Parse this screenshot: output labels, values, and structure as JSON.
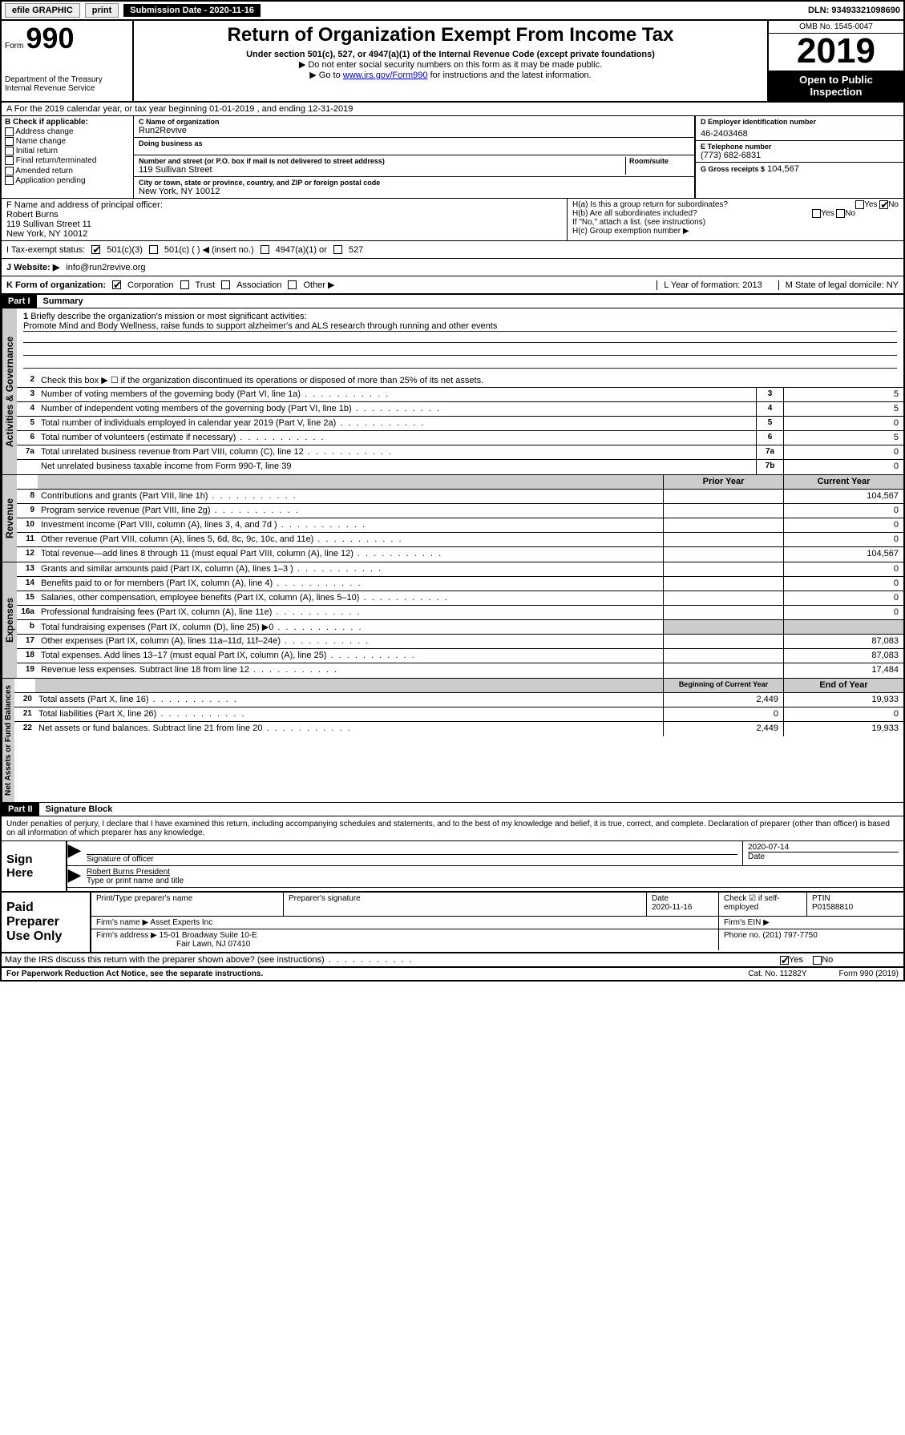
{
  "topbar": {
    "efile": "efile GRAPHIC",
    "print": "print",
    "submission_label": "Submission Date - 2020-11-16",
    "dln": "DLN: 93493321098690"
  },
  "header": {
    "form_prefix": "Form",
    "form_number": "990",
    "title": "Return of Organization Exempt From Income Tax",
    "subtitle": "Under section 501(c), 527, or 4947(a)(1) of the Internal Revenue Code (except private foundations)",
    "note1": "▶ Do not enter social security numbers on this form as it may be made public.",
    "note2_prefix": "▶ Go to ",
    "note2_link": "www.irs.gov/Form990",
    "note2_suffix": " for instructions and the latest information.",
    "dept": "Department of the Treasury",
    "irs": "Internal Revenue Service",
    "omb": "OMB No. 1545-0047",
    "year": "2019",
    "open_public": "Open to Public Inspection"
  },
  "rowA": "A For the 2019 calendar year, or tax year beginning 01-01-2019   , and ending 12-31-2019",
  "colB": {
    "heading": "B Check if applicable:",
    "opts": [
      "Address change",
      "Name change",
      "Initial return",
      "Final return/terminated",
      "Amended return",
      "Application pending"
    ]
  },
  "colC": {
    "name_label": "C Name of organization",
    "name": "Run2Revive",
    "dba_label": "Doing business as",
    "dba": "",
    "street_label": "Number and street (or P.O. box if mail is not delivered to street address)",
    "room_label": "Room/suite",
    "street": "119 Sullivan Street",
    "city_label": "City or town, state or province, country, and ZIP or foreign postal code",
    "city": "New York, NY  10012"
  },
  "colD": {
    "label": "D Employer identification number",
    "value": "46-2403468"
  },
  "colE": {
    "label": "E Telephone number",
    "value": "(773) 682-6831"
  },
  "colG": {
    "label": "G Gross receipts $",
    "value": "104,567"
  },
  "colF": {
    "label": "F  Name and address of principal officer:",
    "name": "Robert Burns",
    "line1": "119 Sullivan Street 11",
    "line2": "New York, NY  10012"
  },
  "colH": {
    "ha": "H(a)  Is this a group return for subordinates?",
    "hb": "H(b)  Are all subordinates included?",
    "hb_note": "If \"No,\" attach a list. (see instructions)",
    "hc": "H(c)  Group exemption number ▶",
    "yes": "Yes",
    "no": "No"
  },
  "status": {
    "label": "I   Tax-exempt status:",
    "o1": "501(c)(3)",
    "o2": "501(c) (  ) ◀ (insert no.)",
    "o3": "4947(a)(1) or",
    "o4": "527"
  },
  "website": {
    "label": "J   Website: ▶",
    "value": "info@run2revive.org"
  },
  "rowK": {
    "label": "K Form of organization:",
    "opts": [
      "Corporation",
      "Trust",
      "Association",
      "Other ▶"
    ],
    "L": "L Year of formation: 2013",
    "M": "M State of legal domicile: NY"
  },
  "part1": {
    "header": "Part I",
    "title": "Summary"
  },
  "summary": {
    "q1": "Briefly describe the organization's mission or most significant activities:",
    "mission": "Promote Mind and Body Wellness, raise funds to support alzheimer's and ALS research through running and other events",
    "q2": "Check this box ▶ ☐  if the organization discontinued its operations or disposed of more than 25% of its net assets.",
    "lines": [
      {
        "n": "3",
        "t": "Number of voting members of the governing body (Part VI, line 1a)",
        "a": "3",
        "v": "5"
      },
      {
        "n": "4",
        "t": "Number of independent voting members of the governing body (Part VI, line 1b)",
        "a": "4",
        "v": "5"
      },
      {
        "n": "5",
        "t": "Total number of individuals employed in calendar year 2019 (Part V, line 2a)",
        "a": "5",
        "v": "0"
      },
      {
        "n": "6",
        "t": "Total number of volunteers (estimate if necessary)",
        "a": "6",
        "v": "5"
      },
      {
        "n": "7a",
        "t": "Total unrelated business revenue from Part VIII, column (C), line 12",
        "a": "7a",
        "v": "0"
      },
      {
        "n": "",
        "t": "Net unrelated business taxable income from Form 990-T, line 39",
        "a": "7b",
        "v": "0"
      }
    ],
    "col_prior": "Prior Year",
    "col_current": "Current Year",
    "revenue": [
      {
        "n": "8",
        "t": "Contributions and grants (Part VIII, line 1h)",
        "p": "",
        "c": "104,567"
      },
      {
        "n": "9",
        "t": "Program service revenue (Part VIII, line 2g)",
        "p": "",
        "c": "0"
      },
      {
        "n": "10",
        "t": "Investment income (Part VIII, column (A), lines 3, 4, and 7d )",
        "p": "",
        "c": "0"
      },
      {
        "n": "11",
        "t": "Other revenue (Part VIII, column (A), lines 5, 6d, 8c, 9c, 10c, and 11e)",
        "p": "",
        "c": "0"
      },
      {
        "n": "12",
        "t": "Total revenue—add lines 8 through 11 (must equal Part VIII, column (A), line 12)",
        "p": "",
        "c": "104,567"
      }
    ],
    "expenses": [
      {
        "n": "13",
        "t": "Grants and similar amounts paid (Part IX, column (A), lines 1–3 )",
        "p": "",
        "c": "0"
      },
      {
        "n": "14",
        "t": "Benefits paid to or for members (Part IX, column (A), line 4)",
        "p": "",
        "c": "0"
      },
      {
        "n": "15",
        "t": "Salaries, other compensation, employee benefits (Part IX, column (A), lines 5–10)",
        "p": "",
        "c": "0"
      },
      {
        "n": "16a",
        "t": "Professional fundraising fees (Part IX, column (A), line 11e)",
        "p": "",
        "c": "0"
      },
      {
        "n": "b",
        "t": "Total fundraising expenses (Part IX, column (D), line 25) ▶0",
        "grey": true
      },
      {
        "n": "17",
        "t": "Other expenses (Part IX, column (A), lines 11a–11d, 11f–24e)",
        "p": "",
        "c": "87,083"
      },
      {
        "n": "18",
        "t": "Total expenses. Add lines 13–17 (must equal Part IX, column (A), line 25)",
        "p": "",
        "c": "87,083"
      },
      {
        "n": "19",
        "t": "Revenue less expenses. Subtract line 18 from line 12",
        "p": "",
        "c": "17,484"
      }
    ],
    "col_begin": "Beginning of Current Year",
    "col_end": "End of Year",
    "netassets": [
      {
        "n": "20",
        "t": "Total assets (Part X, line 16)",
        "p": "2,449",
        "c": "19,933"
      },
      {
        "n": "21",
        "t": "Total liabilities (Part X, line 26)",
        "p": "0",
        "c": "0"
      },
      {
        "n": "22",
        "t": "Net assets or fund balances. Subtract line 21 from line 20",
        "p": "2,449",
        "c": "19,933"
      }
    ]
  },
  "part2": {
    "header": "Part II",
    "title": "Signature Block"
  },
  "perjury": "Under penalties of perjury, I declare that I have examined this return, including accompanying schedules and statements, and to the best of my knowledge and belief, it is true, correct, and complete. Declaration of preparer (other than officer) is based on all information of which preparer has any knowledge.",
  "sign": {
    "here": "Sign Here",
    "sig_label": "Signature of officer",
    "date": "2020-07-14",
    "date_label": "Date",
    "name": "Robert Burns President",
    "name_label": "Type or print name and title"
  },
  "paid": {
    "title": "Paid Preparer Use Only",
    "h_name": "Print/Type preparer's name",
    "h_sig": "Preparer's signature",
    "h_date": "Date",
    "date": "2020-11-16",
    "h_check": "Check ☑ if self-employed",
    "h_ptin": "PTIN",
    "ptin": "P01588810",
    "firm_name_l": "Firm's name    ▶",
    "firm_name": "Asset Experts Inc",
    "firm_ein_l": "Firm's EIN ▶",
    "firm_addr_l": "Firm's address ▶",
    "firm_addr1": "15-01 Broadway Suite 10-E",
    "firm_addr2": "Fair Lawn, NJ  07410",
    "phone_l": "Phone no.",
    "phone": "(201) 797-7750"
  },
  "discuss": {
    "q": "May the IRS discuss this return with the preparer shown above? (see instructions)",
    "yes": "Yes",
    "no": "No"
  },
  "footer": {
    "pra": "For Paperwork Reduction Act Notice, see the separate instructions.",
    "cat": "Cat. No. 11282Y",
    "form": "Form 990 (2019)"
  },
  "tabs": {
    "gov": "Activities & Governance",
    "rev": "Revenue",
    "exp": "Expenses",
    "net": "Net Assets or Fund Balances"
  }
}
